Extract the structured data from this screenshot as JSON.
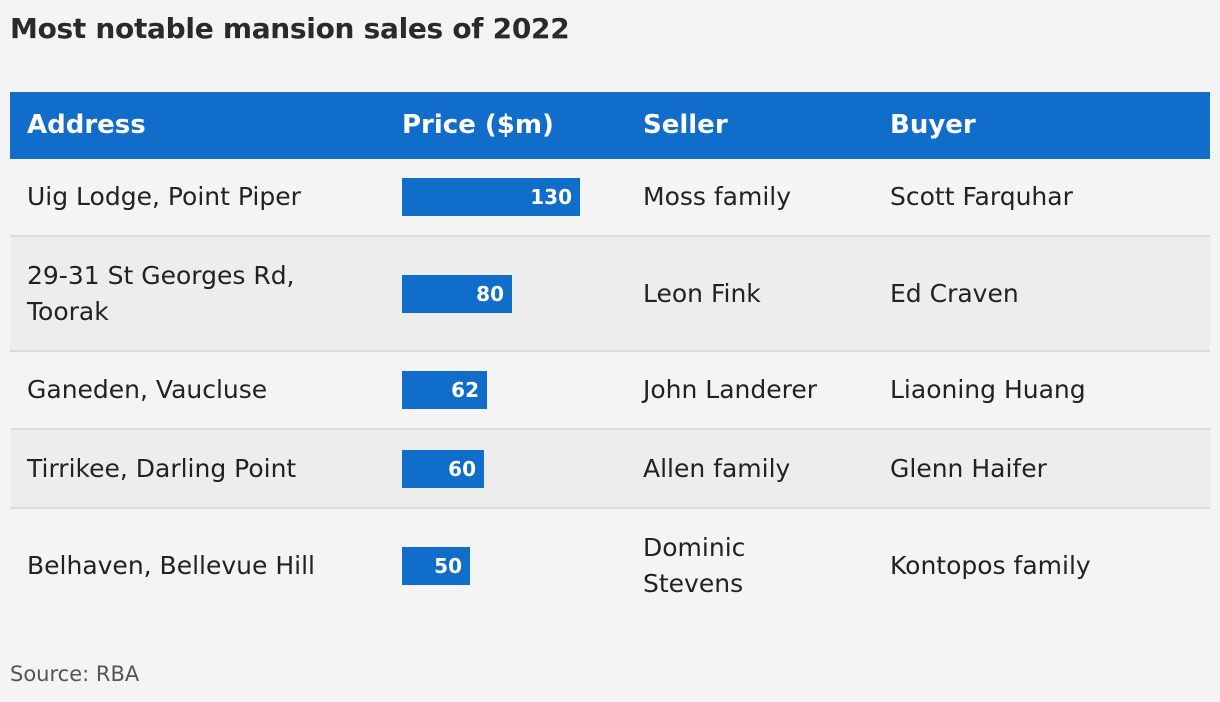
{
  "title": "Most notable mansion sales of 2022",
  "source": "Source: RBA",
  "chart_data": {
    "type": "table",
    "columns": [
      "Address",
      "Price ($m)",
      "Seller",
      "Buyer"
    ],
    "max_value": 130,
    "rows": [
      {
        "address": "Uig Lodge, Point Piper",
        "price": 130,
        "seller": "Moss family",
        "buyer": "Scott Farquhar"
      },
      {
        "address": "29-31 St Georges Rd, Toorak",
        "price": 80,
        "seller": "Leon Fink",
        "buyer": "Ed Craven"
      },
      {
        "address": "Ganeden, Vaucluse",
        "price": 62,
        "seller": "John Landerer",
        "buyer": "Liaoning Huang"
      },
      {
        "address": "Tirrikee, Darling Point",
        "price": 60,
        "seller": "Allen family",
        "buyer": "Glenn Haifer"
      },
      {
        "address": "Belhaven, Bellevue Hill",
        "price": 50,
        "seller": "Dominic Stevens",
        "buyer": "Kontopos family"
      }
    ]
  },
  "colors": {
    "header_bg": "#106dc9",
    "bar": "#106dc9",
    "row_alt": "#ededed",
    "background": "#f4f4f4"
  }
}
